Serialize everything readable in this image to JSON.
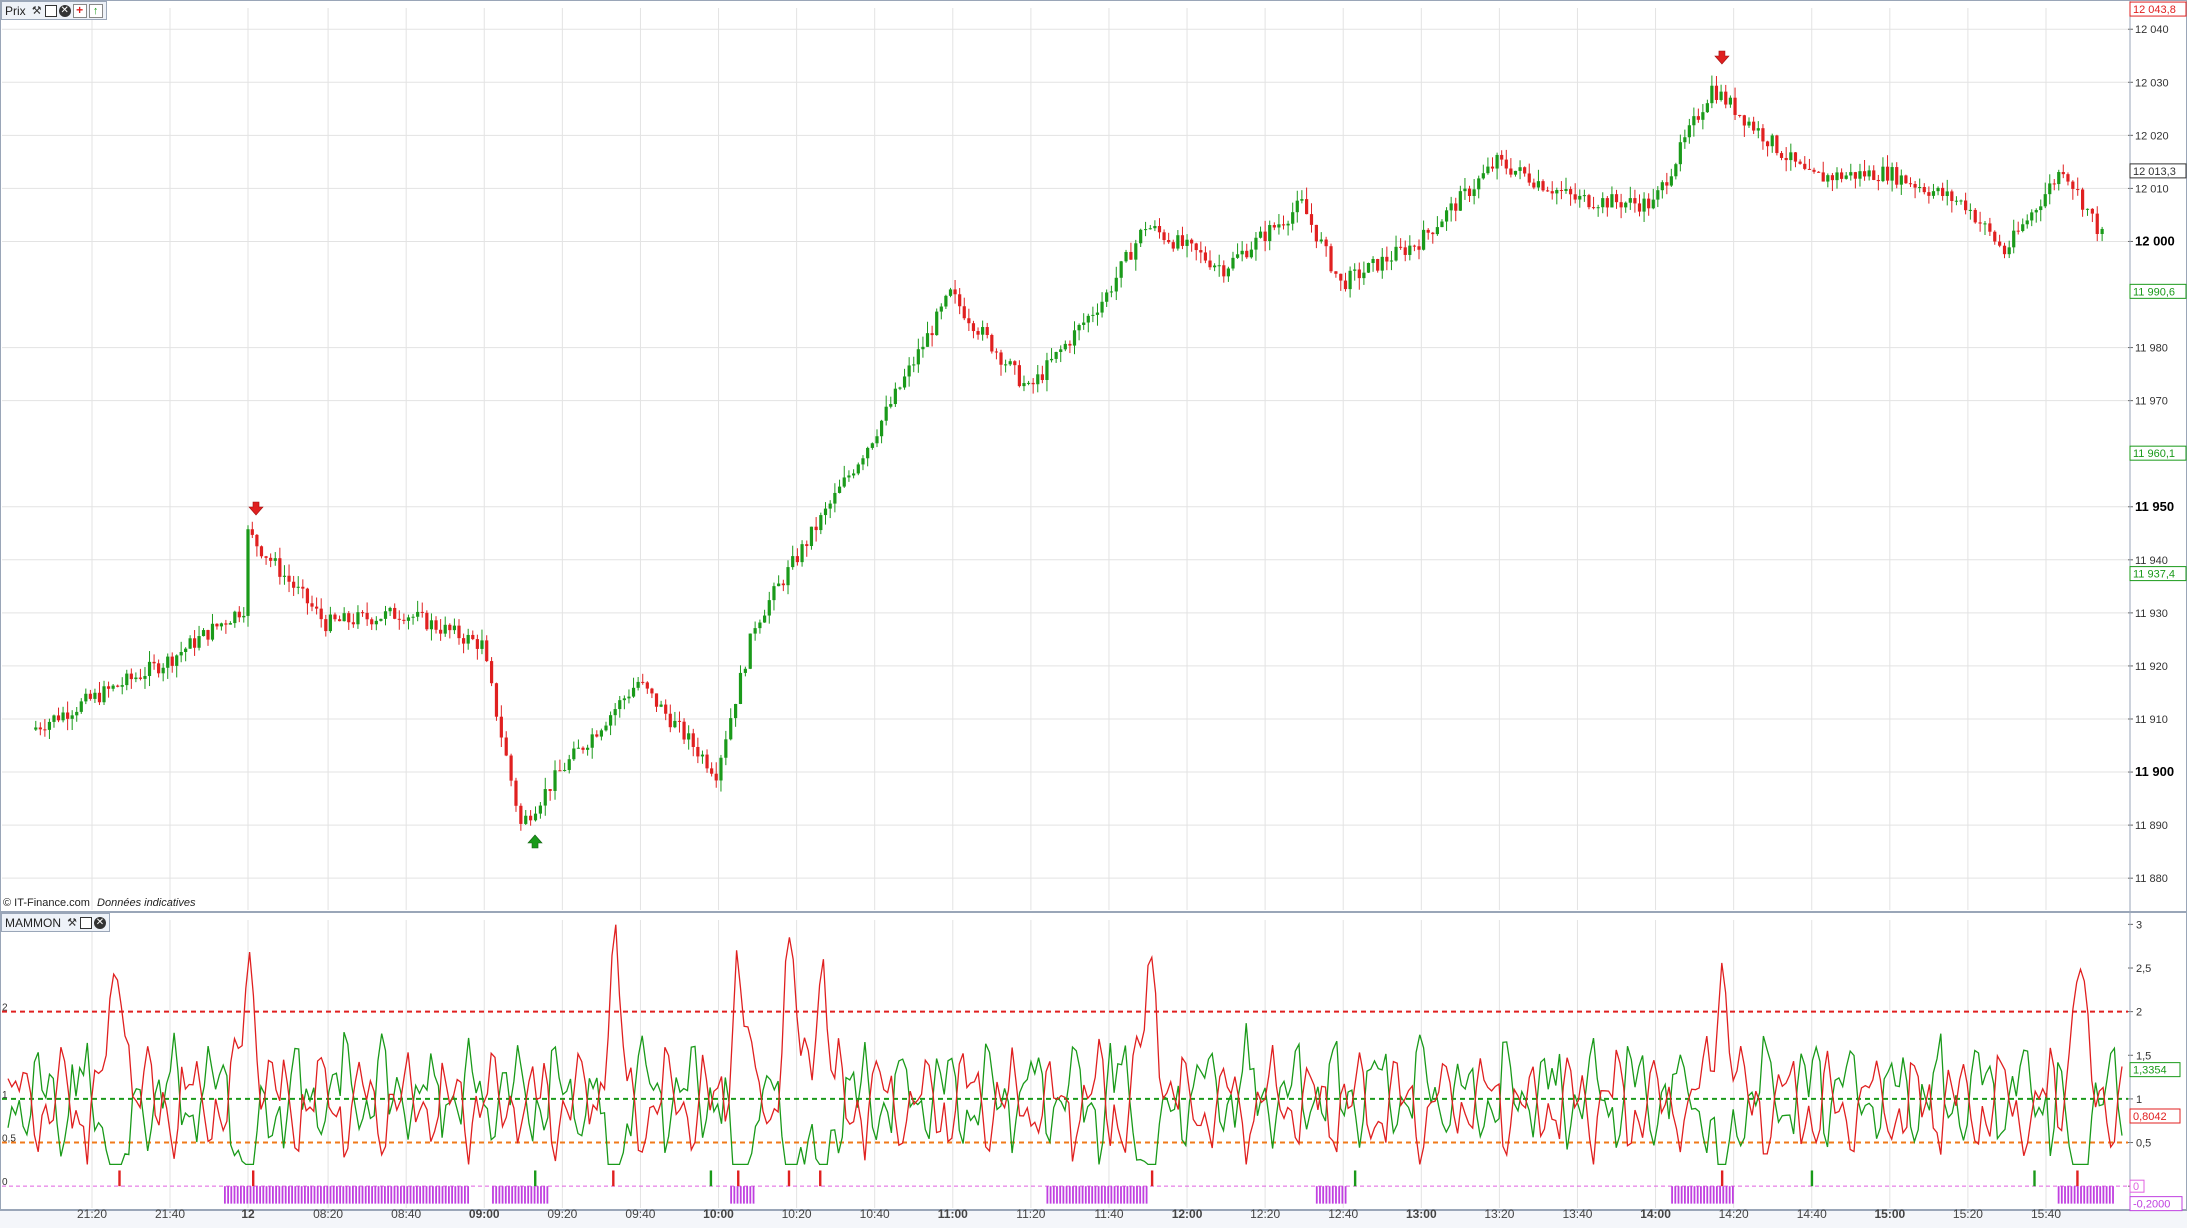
{
  "price_pane": {
    "title": "Prix",
    "copyright": "© IT-Finance.com",
    "disclaimer": "Données indicatives",
    "icons": [
      "wrench-icon",
      "window-icon",
      "close-icon",
      "plus-icon",
      "up-arrow-icon"
    ]
  },
  "indicator_pane": {
    "title": "MAMMON",
    "icons": [
      "wrench-icon",
      "window-icon",
      "close-icon"
    ]
  },
  "colors": {
    "up": "#1a9a1a",
    "down": "#e02020",
    "grid": "#e3e3e3",
    "level_high": "#e02020",
    "level_mid": "#1a9a1a",
    "level_low": "#f07a1a",
    "signal_bar": "#c040e0",
    "zero_line": "#e060e0"
  },
  "chart_data": [
    {
      "type": "candlestick",
      "title": "",
      "yticks": [
        {
          "label": "12 040",
          "value": 12040,
          "bold": false
        },
        {
          "label": "12 030",
          "value": 12030,
          "bold": false
        },
        {
          "label": "12 020",
          "value": 12020,
          "bold": false
        },
        {
          "label": "12 010",
          "value": 12010,
          "bold": false
        },
        {
          "label": "12 000",
          "value": 12000,
          "bold": true
        },
        {
          "label": "11 980",
          "value": 11980,
          "bold": false
        },
        {
          "label": "11 970",
          "value": 11970,
          "bold": false
        },
        {
          "label": "11 950",
          "value": 11950,
          "bold": true
        },
        {
          "label": "11 940",
          "value": 11940,
          "bold": false
        },
        {
          "label": "11 930",
          "value": 11930,
          "bold": false
        },
        {
          "label": "11 920",
          "value": 11920,
          "bold": false
        },
        {
          "label": "11 910",
          "value": 11910,
          "bold": false
        },
        {
          "label": "11 900",
          "value": 11900,
          "bold": true
        },
        {
          "label": "11 890",
          "value": 11890,
          "bold": false
        },
        {
          "label": "11 880",
          "value": 11880,
          "bold": false
        }
      ],
      "ylim": [
        11874,
        12044
      ],
      "price_markers": [
        {
          "label": "12 043,8",
          "value": 12043.8,
          "color": "#e02020"
        },
        {
          "label": "12 013,3",
          "value": 12013.3,
          "color": "#333333"
        },
        {
          "label": "11 990,6",
          "value": 11990.6,
          "color": "#1a9a1a"
        },
        {
          "label": "11 960,1",
          "value": 11960.1,
          "color": "#1a9a1a"
        },
        {
          "label": "11 937,4",
          "value": 11937.4,
          "color": "#1a9a1a"
        }
      ],
      "key_points": [
        {
          "time": "21:05",
          "price": 11908
        },
        {
          "time": "21:40",
          "price": 11921
        },
        {
          "time": "22:00",
          "price": 11931
        },
        {
          "time": "22:02",
          "price": 11945
        },
        {
          "time": "08:20",
          "price": 11928
        },
        {
          "time": "08:40",
          "price": 11930
        },
        {
          "time": "09:00",
          "price": 11924
        },
        {
          "time": "09:10",
          "price": 11890
        },
        {
          "time": "09:20",
          "price": 11900
        },
        {
          "time": "09:40",
          "price": 11917
        },
        {
          "time": "10:00",
          "price": 11900
        },
        {
          "time": "10:10",
          "price": 11928
        },
        {
          "time": "10:40",
          "price": 11963
        },
        {
          "time": "11:00",
          "price": 11990
        },
        {
          "time": "11:20",
          "price": 11972
        },
        {
          "time": "11:40",
          "price": 11990
        },
        {
          "time": "11:50",
          "price": 12003
        },
        {
          "time": "12:10",
          "price": 11995
        },
        {
          "time": "12:30",
          "price": 12007
        },
        {
          "time": "12:40",
          "price": 11992
        },
        {
          "time": "13:00",
          "price": 12000
        },
        {
          "time": "13:20",
          "price": 12015
        },
        {
          "time": "13:40",
          "price": 12008
        },
        {
          "time": "14:00",
          "price": 12007
        },
        {
          "time": "14:15",
          "price": 12029
        },
        {
          "time": "14:40",
          "price": 12012
        },
        {
          "time": "15:00",
          "price": 12013
        },
        {
          "time": "15:20",
          "price": 12007
        },
        {
          "time": "15:30",
          "price": 11998
        },
        {
          "time": "15:45",
          "price": 12014
        },
        {
          "time": "15:55",
          "price": 12001
        }
      ],
      "signals": [
        {
          "time": "22:02",
          "direction": "sell"
        },
        {
          "time": "09:13",
          "direction": "buy"
        },
        {
          "time": "14:17",
          "direction": "sell"
        }
      ]
    },
    {
      "type": "line",
      "title": "",
      "yticks": [
        {
          "label": "3",
          "value": 3
        },
        {
          "label": "2,5",
          "value": 2.5
        },
        {
          "label": "2",
          "value": 2
        },
        {
          "label": "1,5",
          "value": 1.5
        },
        {
          "label": "1",
          "value": 1
        },
        {
          "label": "0,5",
          "value": 0.5
        },
        {
          "label": "0",
          "value": 0
        }
      ],
      "left_labels": [
        "2",
        "1",
        "0,5",
        "0"
      ],
      "ylim": [
        -0.25,
        3.05
      ],
      "levels": [
        2,
        1,
        0.5
      ],
      "series": [
        {
          "color": "#e02020",
          "last_label": "0,8042",
          "last_value": 0.8042
        },
        {
          "color": "#1a9a1a",
          "last_label": "1,3354",
          "last_value": 1.3354
        }
      ],
      "zero_marker": {
        "label": "0",
        "value": 0
      },
      "bar_marker": {
        "label": "-0,2000",
        "value": -0.2
      },
      "signal_spikes_red": [
        "21:27",
        "22:02",
        "09:33",
        "10:05",
        "10:18",
        "10:26",
        "11:51",
        "14:17",
        "15:48"
      ],
      "signal_spikes_green": [
        "09:13",
        "09:58",
        "12:43",
        "14:40",
        "15:37"
      ],
      "signal_bar_ranges": [
        [
          "22:00",
          "08:56"
        ],
        [
          "09:02",
          "09:16"
        ],
        [
          "10:03",
          "10:09"
        ],
        [
          "11:24",
          "11:50"
        ],
        [
          "12:33",
          "12:41"
        ],
        [
          "14:04",
          "14:20"
        ],
        [
          "15:43",
          "15:57"
        ]
      ]
    }
  ],
  "x_axis": {
    "ticks": [
      {
        "label": "21:20",
        "bold": false
      },
      {
        "label": "21:40",
        "bold": false
      },
      {
        "label": "12",
        "bold": true
      },
      {
        "label": "08:20",
        "bold": false
      },
      {
        "label": "08:40",
        "bold": false
      },
      {
        "label": "09:00",
        "bold": true
      },
      {
        "label": "09:20",
        "bold": false
      },
      {
        "label": "09:40",
        "bold": false
      },
      {
        "label": "10:00",
        "bold": true
      },
      {
        "label": "10:20",
        "bold": false
      },
      {
        "label": "10:40",
        "bold": false
      },
      {
        "label": "11:00",
        "bold": true
      },
      {
        "label": "11:20",
        "bold": false
      },
      {
        "label": "11:40",
        "bold": false
      },
      {
        "label": "12:00",
        "bold": true
      },
      {
        "label": "12:20",
        "bold": false
      },
      {
        "label": "12:40",
        "bold": false
      },
      {
        "label": "13:00",
        "bold": true
      },
      {
        "label": "13:20",
        "bold": false
      },
      {
        "label": "13:40",
        "bold": false
      },
      {
        "label": "14:00",
        "bold": true
      },
      {
        "label": "14:20",
        "bold": false
      },
      {
        "label": "14:40",
        "bold": false
      },
      {
        "label": "15:00",
        "bold": true
      },
      {
        "label": "15:20",
        "bold": false
      },
      {
        "label": "15:40",
        "bold": false
      }
    ]
  }
}
